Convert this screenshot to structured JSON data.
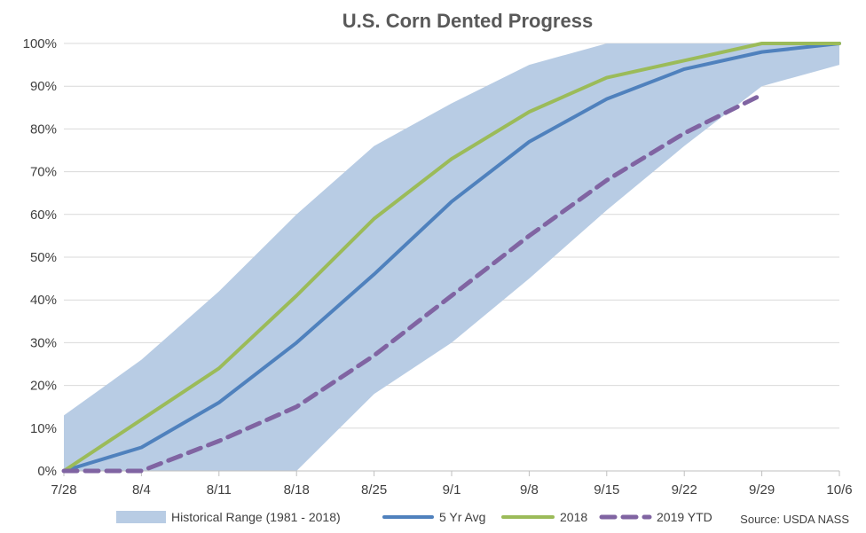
{
  "chart_data": {
    "type": "line",
    "title": "U.S. Corn Dented Progress",
    "categories": [
      "7/28",
      "8/4",
      "8/11",
      "8/18",
      "8/25",
      "9/1",
      "9/8",
      "9/15",
      "9/22",
      "9/29",
      "10/6"
    ],
    "ylim": [
      0,
      100
    ],
    "y_ticks": [
      "0%",
      "10%",
      "20%",
      "30%",
      "40%",
      "50%",
      "60%",
      "70%",
      "80%",
      "90%",
      "100%"
    ],
    "grid": true,
    "legend_position": "bottom",
    "range_band": {
      "name": "Historical Range (1981 - 2018)",
      "color": "#b8cce4",
      "low": [
        0,
        0,
        0,
        0,
        18,
        30,
        45,
        61,
        76,
        90,
        95
      ],
      "high": [
        13,
        26,
        42,
        60,
        76,
        86,
        95,
        100,
        100,
        100,
        100
      ]
    },
    "series": [
      {
        "name": "5 Yr Avg",
        "color": "#4f81bd",
        "dashed": false,
        "values": [
          0,
          5.5,
          16,
          30,
          46,
          63,
          77,
          87,
          94,
          98,
          100
        ]
      },
      {
        "name": "2018",
        "color": "#9bbb59",
        "dashed": false,
        "values": [
          0,
          12,
          24,
          41,
          59,
          73,
          84,
          92,
          96,
          100,
          100
        ]
      },
      {
        "name": "2019 YTD",
        "color": "#8064a2",
        "dashed": true,
        "values": [
          0,
          0,
          7,
          15,
          27,
          41,
          55,
          68,
          79,
          88,
          null
        ]
      }
    ],
    "source": "Source: USDA NASS"
  }
}
